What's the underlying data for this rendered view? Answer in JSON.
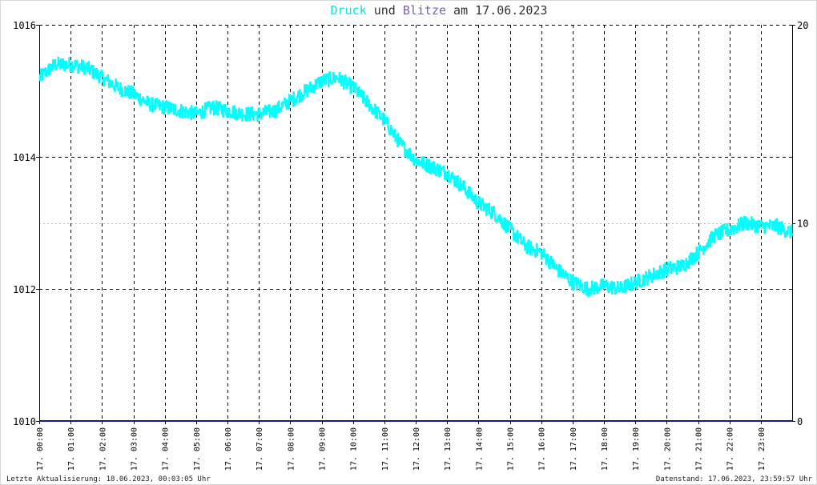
{
  "chart_data": {
    "type": "line",
    "title": {
      "part1": "Druck",
      "part2": " und ",
      "part3": "Blitze",
      "part4": " am 17.06.2023"
    },
    "x_tick_labels": [
      "17. 00:00",
      "17. 01:00",
      "17. 02:00",
      "17. 03:00",
      "17. 04:00",
      "17. 05:00",
      "17. 06:00",
      "17. 07:00",
      "17. 08:00",
      "17. 09:00",
      "17. 10:00",
      "17. 11:00",
      "17. 12:00",
      "17. 13:00",
      "17. 14:00",
      "17. 15:00",
      "17. 16:00",
      "17. 17:00",
      "17. 18:00",
      "17. 19:00",
      "17. 20:00",
      "17. 21:00",
      "17. 22:00",
      "17. 23:00"
    ],
    "y_left_ticks": [
      "1016",
      "1014",
      "1012",
      "1010"
    ],
    "y_right_ticks": [
      "20",
      "10",
      "0"
    ],
    "ylim_left": [
      1010,
      1016
    ],
    "ylim_right": [
      0,
      20
    ],
    "xlim_hours": [
      0,
      24
    ],
    "series": [
      {
        "name": "Druck",
        "color": "#00ffff",
        "axis": "left",
        "x": [
          0,
          0.5,
          1,
          1.5,
          2,
          2.5,
          3,
          3.5,
          4,
          4.5,
          5,
          5.5,
          6,
          6.5,
          7,
          7.5,
          8,
          8.5,
          9,
          9.5,
          10,
          10.5,
          11,
          11.5,
          12,
          12.5,
          13,
          13.5,
          14,
          14.5,
          15,
          15.5,
          16,
          16.5,
          17,
          17.5,
          18,
          18.5,
          19,
          19.5,
          20,
          20.5,
          21,
          21.5,
          22,
          22.5,
          23,
          23.5,
          24
        ],
        "values": [
          1015.2,
          1015.4,
          1015.4,
          1015.35,
          1015.2,
          1015.05,
          1014.95,
          1014.8,
          1014.75,
          1014.7,
          1014.65,
          1014.75,
          1014.7,
          1014.65,
          1014.65,
          1014.7,
          1014.85,
          1015.0,
          1015.15,
          1015.2,
          1015.05,
          1014.8,
          1014.55,
          1014.2,
          1013.95,
          1013.85,
          1013.75,
          1013.55,
          1013.3,
          1013.15,
          1012.9,
          1012.65,
          1012.55,
          1012.3,
          1012.1,
          1012.0,
          1012.05,
          1012.0,
          1012.1,
          1012.2,
          1012.3,
          1012.35,
          1012.55,
          1012.8,
          1012.9,
          1013.0,
          1012.95,
          1012.95,
          1012.85
        ]
      },
      {
        "name": "Blitze",
        "color": "#1a1a80",
        "axis": "right",
        "x": [
          0,
          24
        ],
        "values": [
          0,
          0
        ]
      }
    ],
    "grid": true
  },
  "footer": {
    "left": "Letzte Aktualisierung: 18.06.2023, 00:03:05 Uhr",
    "right": "Datenstand: 17.06.2023, 23:59:57 Uhr"
  }
}
